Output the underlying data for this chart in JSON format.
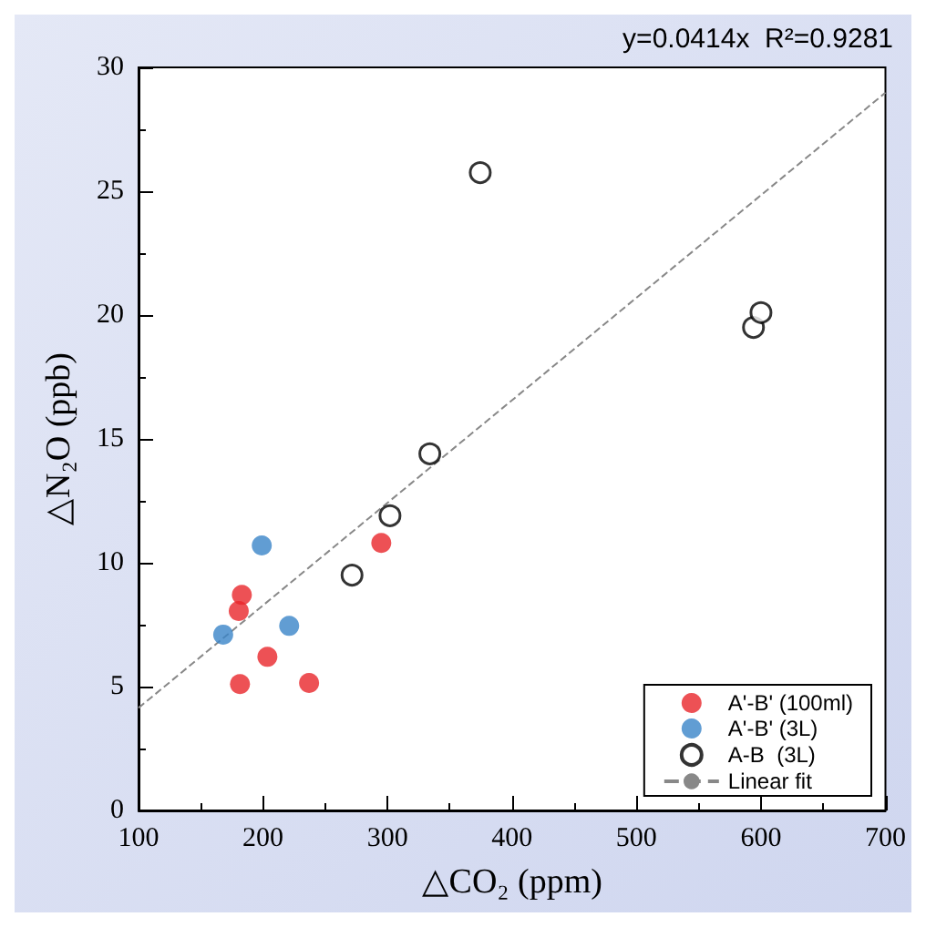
{
  "chart_data": {
    "type": "scatter",
    "xlabel": "△CO₂ (ppm)",
    "ylabel": "△N₂O (ppb)",
    "annotations": [
      "y=0.0414x  R²=0.9281"
    ],
    "series": [
      {
        "name": "A'-B' (100ml)",
        "color": "#e8262a",
        "x": [
          183,
          180.5,
          181.5,
          203.5,
          237,
          295
        ],
        "values": [
          8.7,
          8.05,
          5.1,
          6.2,
          5.15,
          10.8
        ]
      },
      {
        "name": "A'-B' (3L)",
        "color": "#3a85c8",
        "x": [
          168,
          199,
          221
        ],
        "values": [
          7.1,
          10.7,
          7.45
        ]
      },
      {
        "name": "A-B  (3L)",
        "color": "#000000",
        "marker": "open_circle",
        "x": [
          271.5,
          302,
          334,
          374.5,
          594,
          600
        ],
        "values": [
          9.5,
          11.9,
          14.4,
          25.75,
          19.5,
          20.1
        ]
      },
      {
        "name": "Linear fit",
        "type": "line",
        "color": "#888888",
        "line_style": "dashed",
        "marker": "none",
        "x": [
          100,
          700
        ],
        "values": [
          4.14,
          28.98
        ]
      }
    ],
    "xlim": [
      100,
      700
    ],
    "xticks": [
      100,
      200,
      300,
      400,
      500,
      600,
      700
    ],
    "ylim": [
      0,
      30
    ],
    "yticks": [
      0,
      5,
      10,
      15,
      20,
      25,
      30
    ],
    "grid": false,
    "legend": "bottom right",
    "marker": "circle"
  }
}
